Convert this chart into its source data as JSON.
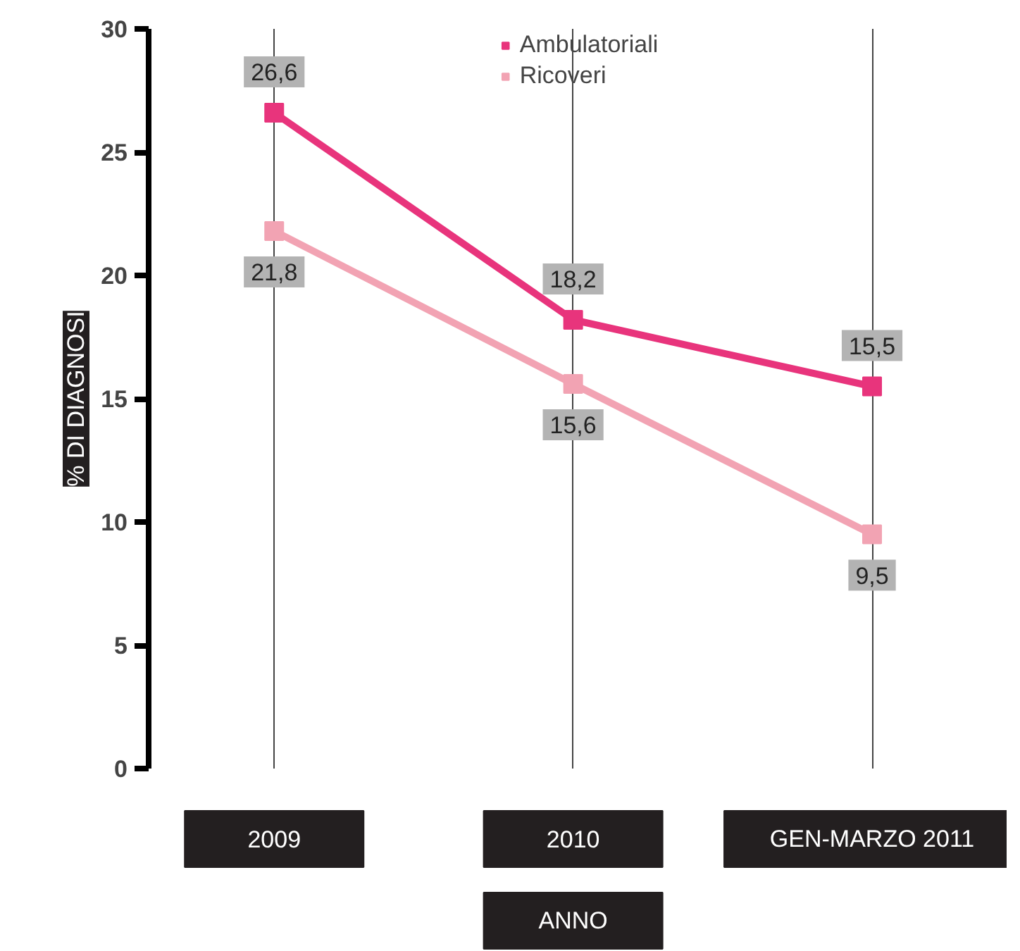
{
  "chart_data": {
    "type": "line",
    "categories": [
      "2009",
      "2010",
      "GEN-MARZO 2011"
    ],
    "xlabel": "ANNO",
    "ylabel": "% DI DIAGNOSI",
    "series": [
      {
        "name": "Ambulatoriali",
        "color": "#e8347c",
        "values": [
          26.6,
          18.2,
          15.5
        ],
        "value_labels": [
          "26,6",
          "18,2",
          "15,5"
        ]
      },
      {
        "name": "Ricoveri",
        "color": "#f2a3b3",
        "values": [
          21.8,
          15.6,
          9.5
        ],
        "value_labels": [
          "21,8",
          "15,6",
          "9,5"
        ]
      }
    ],
    "ylim": [
      0,
      30
    ],
    "yticks": [
      0,
      5,
      10,
      15,
      20,
      25,
      30
    ],
    "grid": "x",
    "legend": "top",
    "marker": "square",
    "line_style": "solid"
  }
}
